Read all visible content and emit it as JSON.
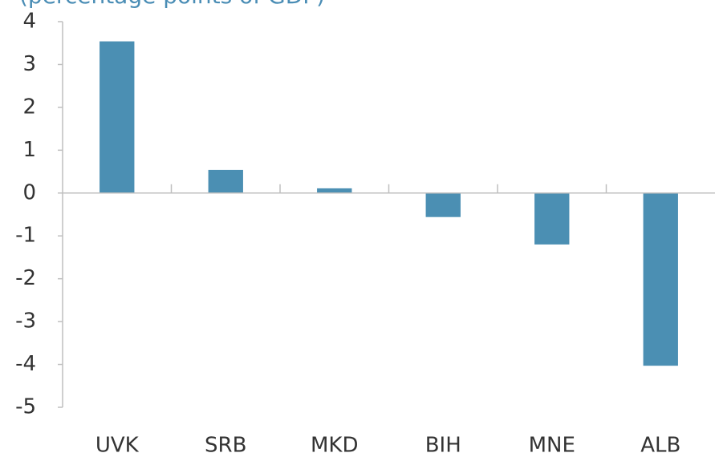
{
  "chart_data": {
    "type": "bar",
    "subtitle": "(percentage points of GDP)",
    "categories": [
      "UVK",
      "SRB",
      "MKD",
      "BIH",
      "MNE",
      "ALB"
    ],
    "values": [
      3.54,
      0.54,
      0.11,
      -0.56,
      -1.2,
      -4.03
    ],
    "color": "#4b8fb3",
    "ylim": [
      -5,
      4
    ],
    "yticks": [
      -5,
      -4,
      -3,
      -2,
      -1,
      0,
      1,
      2,
      3,
      4
    ],
    "grid": false
  }
}
